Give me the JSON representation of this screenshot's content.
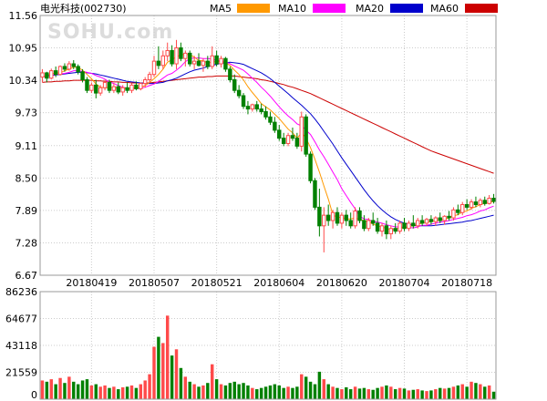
{
  "title": "电光科技(002730)",
  "watermark": "SOHU.com",
  "colors": {
    "up": "#ff4a4a",
    "down": "#008000",
    "ma5": "#ff9900",
    "ma10": "#ff00ff",
    "ma20": "#0000cc",
    "ma60": "#cc0000",
    "grid": "#cccccc",
    "border": "#999999"
  },
  "chart_data": {
    "type": "candlestick",
    "legend": [
      {
        "name": "MA5",
        "color": "#ff9900"
      },
      {
        "name": "MA10",
        "color": "#ff00ff"
      },
      {
        "name": "MA20",
        "color": "#0000cc"
      },
      {
        "name": "MA60",
        "color": "#cc0000"
      }
    ],
    "price_ticks": [
      "11.56",
      "10.95",
      "10.34",
      "9.73",
      "9.11",
      "8.50",
      "7.89",
      "7.28",
      "6.67"
    ],
    "price_range": [
      6.67,
      11.56
    ],
    "volume_ticks": [
      "86236",
      "64677",
      "43118",
      "21559",
      "0"
    ],
    "volume_range": [
      0,
      86236
    ],
    "date_labels": [
      {
        "label": "20180419",
        "index": 11
      },
      {
        "label": "20180507",
        "index": 25
      },
      {
        "label": "20180521",
        "index": 39
      },
      {
        "label": "20180604",
        "index": 53
      },
      {
        "label": "20180620",
        "index": 67
      },
      {
        "label": "20180704",
        "index": 81
      },
      {
        "label": "20180718",
        "index": 95
      }
    ],
    "candles": [
      [
        10.4,
        10.55,
        10.3,
        10.48,
        15000
      ],
      [
        10.48,
        10.5,
        10.3,
        10.38,
        14000
      ],
      [
        10.38,
        10.56,
        10.36,
        10.52,
        16000
      ],
      [
        10.52,
        10.6,
        10.4,
        10.45,
        12000
      ],
      [
        10.45,
        10.62,
        10.43,
        10.6,
        17000
      ],
      [
        10.6,
        10.66,
        10.5,
        10.55,
        13000
      ],
      [
        10.55,
        10.7,
        10.52,
        10.65,
        18000
      ],
      [
        10.65,
        10.72,
        10.55,
        10.6,
        14000
      ],
      [
        10.6,
        10.64,
        10.45,
        10.5,
        12000
      ],
      [
        10.5,
        10.55,
        10.3,
        10.35,
        15000
      ],
      [
        10.35,
        10.4,
        10.1,
        10.15,
        16000
      ],
      [
        10.15,
        10.3,
        10.1,
        10.25,
        11000
      ],
      [
        10.25,
        10.35,
        10.0,
        10.1,
        12000
      ],
      [
        10.1,
        10.25,
        10.05,
        10.2,
        10000
      ],
      [
        10.2,
        10.35,
        10.15,
        10.3,
        11000
      ],
      [
        10.3,
        10.35,
        10.1,
        10.15,
        9000
      ],
      [
        10.15,
        10.28,
        10.1,
        10.22,
        10000
      ],
      [
        10.22,
        10.3,
        10.08,
        10.12,
        8000
      ],
      [
        10.12,
        10.25,
        10.05,
        10.2,
        9500
      ],
      [
        10.2,
        10.3,
        10.1,
        10.15,
        10000
      ],
      [
        10.15,
        10.28,
        10.1,
        10.25,
        11000
      ],
      [
        10.25,
        10.32,
        10.15,
        10.18,
        9000
      ],
      [
        10.18,
        10.3,
        10.15,
        10.28,
        12000
      ],
      [
        10.28,
        10.4,
        10.2,
        10.35,
        15000
      ],
      [
        10.35,
        10.5,
        10.3,
        10.45,
        20000
      ],
      [
        10.45,
        10.8,
        10.4,
        10.7,
        42000
      ],
      [
        10.7,
        10.98,
        10.55,
        10.62,
        50000
      ],
      [
        10.62,
        10.9,
        10.55,
        10.8,
        45000
      ],
      [
        10.8,
        11.05,
        10.7,
        10.9,
        67000
      ],
      [
        10.9,
        11.0,
        10.6,
        10.65,
        35000
      ],
      [
        10.65,
        11.1,
        10.55,
        10.95,
        40000
      ],
      [
        10.95,
        11.05,
        10.7,
        10.75,
        25000
      ],
      [
        10.75,
        10.9,
        10.6,
        10.85,
        18000
      ],
      [
        10.85,
        10.9,
        10.6,
        10.65,
        14000
      ],
      [
        10.65,
        10.8,
        10.55,
        10.7,
        12000
      ],
      [
        10.7,
        10.85,
        10.6,
        10.62,
        10000
      ],
      [
        10.62,
        10.75,
        10.5,
        10.7,
        11000
      ],
      [
        10.7,
        10.8,
        10.55,
        10.6,
        13000
      ],
      [
        10.6,
        10.98,
        10.55,
        10.8,
        28000
      ],
      [
        10.8,
        10.9,
        10.6,
        10.65,
        16000
      ],
      [
        10.65,
        10.8,
        10.58,
        10.75,
        12000
      ],
      [
        10.75,
        10.78,
        10.5,
        10.55,
        11000
      ],
      [
        10.55,
        10.6,
        10.3,
        10.35,
        13000
      ],
      [
        10.35,
        10.45,
        10.1,
        10.15,
        14000
      ],
      [
        10.15,
        10.25,
        10.0,
        10.05,
        12000
      ],
      [
        10.05,
        10.1,
        9.8,
        9.85,
        13000
      ],
      [
        9.85,
        9.95,
        9.7,
        9.8,
        11000
      ],
      [
        9.8,
        9.9,
        9.75,
        9.88,
        9000
      ],
      [
        9.88,
        9.95,
        9.75,
        9.8,
        8000
      ],
      [
        9.8,
        9.9,
        9.7,
        9.75,
        9000
      ],
      [
        9.75,
        9.85,
        9.6,
        9.65,
        10000
      ],
      [
        9.65,
        9.75,
        9.5,
        9.55,
        11000
      ],
      [
        9.55,
        9.65,
        9.35,
        9.4,
        12000
      ],
      [
        9.4,
        9.5,
        9.2,
        9.25,
        11000
      ],
      [
        9.25,
        9.35,
        9.1,
        9.15,
        9000
      ],
      [
        9.15,
        9.35,
        9.1,
        9.3,
        10000
      ],
      [
        9.3,
        9.45,
        9.2,
        9.25,
        9000
      ],
      [
        9.25,
        9.35,
        9.05,
        9.1,
        10000
      ],
      [
        9.1,
        9.75,
        9.0,
        9.65,
        20000
      ],
      [
        9.65,
        9.7,
        8.9,
        8.95,
        18000
      ],
      [
        8.95,
        9.0,
        8.4,
        8.45,
        14000
      ],
      [
        8.45,
        8.5,
        7.9,
        7.95,
        12000
      ],
      [
        7.95,
        8.3,
        7.4,
        7.6,
        22000
      ],
      [
        7.6,
        7.95,
        7.1,
        7.8,
        16000
      ],
      [
        7.8,
        8.0,
        7.6,
        7.7,
        12000
      ],
      [
        7.7,
        7.9,
        7.55,
        7.85,
        10000
      ],
      [
        7.85,
        7.95,
        7.6,
        7.65,
        9000
      ],
      [
        7.65,
        7.85,
        7.55,
        7.8,
        8000
      ],
      [
        7.8,
        7.9,
        7.6,
        7.7,
        9500
      ],
      [
        7.7,
        7.85,
        7.55,
        7.6,
        8000
      ],
      [
        7.6,
        7.95,
        7.55,
        7.88,
        10000
      ],
      [
        7.88,
        7.95,
        7.65,
        7.7,
        8500
      ],
      [
        7.7,
        7.8,
        7.5,
        7.55,
        9000
      ],
      [
        7.55,
        7.75,
        7.5,
        7.7,
        8000
      ],
      [
        7.7,
        7.85,
        7.6,
        7.65,
        7500
      ],
      [
        7.65,
        7.75,
        7.45,
        7.5,
        9000
      ],
      [
        7.5,
        7.65,
        7.4,
        7.6,
        10000
      ],
      [
        7.6,
        7.7,
        7.35,
        7.45,
        11000
      ],
      [
        7.45,
        7.6,
        7.35,
        7.55,
        10000
      ],
      [
        7.55,
        7.65,
        7.45,
        7.5,
        8000
      ],
      [
        7.5,
        7.7,
        7.45,
        7.65,
        9000
      ],
      [
        7.65,
        7.75,
        7.5,
        7.55,
        8500
      ],
      [
        7.55,
        7.7,
        7.5,
        7.65,
        7000
      ],
      [
        7.65,
        7.8,
        7.55,
        7.6,
        7500
      ],
      [
        7.6,
        7.75,
        7.55,
        7.7,
        8000
      ],
      [
        7.7,
        7.8,
        7.6,
        7.65,
        7000
      ],
      [
        7.65,
        7.75,
        7.6,
        7.72,
        6500
      ],
      [
        7.72,
        7.8,
        7.62,
        7.68,
        7000
      ],
      [
        7.68,
        7.78,
        7.6,
        7.75,
        8000
      ],
      [
        7.75,
        7.85,
        7.65,
        7.7,
        9000
      ],
      [
        7.7,
        7.8,
        7.62,
        7.78,
        8500
      ],
      [
        7.78,
        7.88,
        7.7,
        7.75,
        9000
      ],
      [
        7.75,
        7.95,
        7.7,
        7.9,
        10000
      ],
      [
        7.9,
        8.0,
        7.8,
        7.85,
        11000
      ],
      [
        7.85,
        8.05,
        7.8,
        8.0,
        12000
      ],
      [
        8.0,
        8.1,
        7.9,
        7.95,
        10000
      ],
      [
        7.95,
        8.1,
        7.9,
        8.05,
        14000
      ],
      [
        8.05,
        8.15,
        7.95,
        8.0,
        13000
      ],
      [
        8.0,
        8.12,
        7.95,
        8.08,
        12000
      ],
      [
        8.08,
        8.15,
        7.98,
        8.02,
        10000
      ],
      [
        8.02,
        8.18,
        8.0,
        8.12,
        11000
      ],
      [
        8.12,
        8.2,
        8.02,
        8.06,
        6000
      ]
    ],
    "ma5": [
      10.4,
      10.43,
      10.46,
      10.48,
      10.48,
      10.52,
      10.55,
      10.59,
      10.58,
      10.53,
      10.45,
      10.37,
      10.27,
      10.21,
      10.2,
      10.2,
      10.2,
      10.2,
      10.2,
      10.18,
      10.19,
      10.2,
      10.21,
      10.24,
      10.3,
      10.37,
      10.45,
      10.55,
      10.68,
      10.73,
      10.78,
      10.82,
      10.83,
      10.82,
      10.78,
      10.71,
      10.71,
      10.66,
      10.69,
      10.69,
      10.7,
      10.67,
      10.62,
      10.53,
      10.45,
      10.35,
      10.22,
      10.11,
      10.01,
      9.9,
      9.84,
      9.78,
      9.7,
      9.62,
      9.52,
      9.42,
      9.35,
      9.25,
      9.35,
      9.25,
      9.07,
      8.85,
      8.61,
      8.35,
      8.1,
      7.81,
      7.76,
      7.76,
      7.73,
      7.73,
      7.75,
      7.72,
      7.7,
      7.68,
      7.63,
      7.6,
      7.58,
      7.55,
      7.53,
      7.53,
      7.57,
      7.56,
      7.59,
      7.6,
      7.63,
      7.65,
      7.67,
      7.68,
      7.7,
      7.7,
      7.72,
      7.75,
      7.79,
      7.81,
      7.86,
      7.88,
      7.93,
      7.96,
      8.0,
      8.02,
      8.04,
      8.06
    ],
    "ma10": [
      10.4,
      10.43,
      10.44,
      10.45,
      10.46,
      10.47,
      10.49,
      10.52,
      10.52,
      10.51,
      10.49,
      10.47,
      10.43,
      10.4,
      10.36,
      10.31,
      10.28,
      10.24,
      10.21,
      10.19,
      10.19,
      10.19,
      10.19,
      10.21,
      10.24,
      10.27,
      10.32,
      10.38,
      10.44,
      10.47,
      10.53,
      10.6,
      10.69,
      10.75,
      10.76,
      10.76,
      10.75,
      10.75,
      10.74,
      10.71,
      10.71,
      10.69,
      10.65,
      10.61,
      10.57,
      10.53,
      10.46,
      10.38,
      10.3,
      10.21,
      10.13,
      10.04,
      9.94,
      9.84,
      9.75,
      9.67,
      9.6,
      9.52,
      9.48,
      9.4,
      9.32,
      9.18,
      9.03,
      8.9,
      8.76,
      8.61,
      8.47,
      8.3,
      8.17,
      8.04,
      7.92,
      7.78,
      7.73,
      7.72,
      7.68,
      7.67,
      7.65,
      7.62,
      7.6,
      7.58,
      7.58,
      7.57,
      7.57,
      7.56,
      7.58,
      7.61,
      7.61,
      7.63,
      7.65,
      7.67,
      7.68,
      7.7,
      7.72,
      7.74,
      7.76,
      7.79,
      7.81,
      7.84,
      7.88,
      7.9,
      7.94,
      7.97
    ],
    "ma20": [
      10.4,
      10.42,
      10.43,
      10.44,
      10.45,
      10.46,
      10.47,
      10.48,
      10.49,
      10.49,
      10.48,
      10.47,
      10.46,
      10.44,
      10.42,
      10.4,
      10.38,
      10.36,
      10.34,
      10.32,
      10.31,
      10.3,
      10.29,
      10.28,
      10.28,
      10.28,
      10.29,
      10.3,
      10.33,
      10.35,
      10.38,
      10.42,
      10.46,
      10.5,
      10.53,
      10.55,
      10.57,
      10.6,
      10.62,
      10.64,
      10.66,
      10.67,
      10.68,
      10.67,
      10.66,
      10.64,
      10.6,
      10.56,
      10.52,
      10.48,
      10.43,
      10.37,
      10.3,
      10.23,
      10.16,
      10.09,
      10.01,
      9.94,
      9.87,
      9.79,
      9.71,
      9.61,
      9.5,
      9.38,
      9.26,
      9.14,
      9.01,
      8.88,
      8.76,
      8.64,
      8.52,
      8.4,
      8.28,
      8.17,
      8.07,
      7.98,
      7.9,
      7.83,
      7.77,
      7.72,
      7.68,
      7.65,
      7.63,
      7.61,
      7.6,
      7.6,
      7.6,
      7.6,
      7.61,
      7.62,
      7.63,
      7.64,
      7.65,
      7.66,
      7.67,
      7.69,
      7.7,
      7.72,
      7.74,
      7.76,
      7.78,
      7.8
    ],
    "ma60": [
      10.3,
      10.31,
      10.31,
      10.32,
      10.32,
      10.33,
      10.33,
      10.34,
      10.34,
      10.34,
      10.34,
      10.34,
      10.33,
      10.33,
      10.32,
      10.32,
      10.31,
      10.31,
      10.3,
      10.3,
      10.29,
      10.29,
      10.29,
      10.29,
      10.29,
      10.3,
      10.31,
      10.32,
      10.33,
      10.34,
      10.35,
      10.36,
      10.37,
      10.38,
      10.39,
      10.4,
      10.4,
      10.41,
      10.41,
      10.42,
      10.42,
      10.42,
      10.42,
      10.42,
      10.41,
      10.4,
      10.39,
      10.38,
      10.37,
      10.35,
      10.34,
      10.32,
      10.3,
      10.28,
      10.26,
      10.23,
      10.21,
      10.18,
      10.15,
      10.12,
      10.09,
      10.05,
      10.01,
      9.97,
      9.93,
      9.89,
      9.85,
      9.81,
      9.77,
      9.73,
      9.69,
      9.65,
      9.61,
      9.57,
      9.53,
      9.49,
      9.45,
      9.41,
      9.37,
      9.33,
      9.29,
      9.25,
      9.21,
      9.17,
      9.13,
      9.09,
      9.05,
      9.01,
      8.98,
      8.95,
      8.92,
      8.89,
      8.86,
      8.83,
      8.8,
      8.77,
      8.74,
      8.71,
      8.68,
      8.65,
      8.62,
      8.59
    ]
  }
}
